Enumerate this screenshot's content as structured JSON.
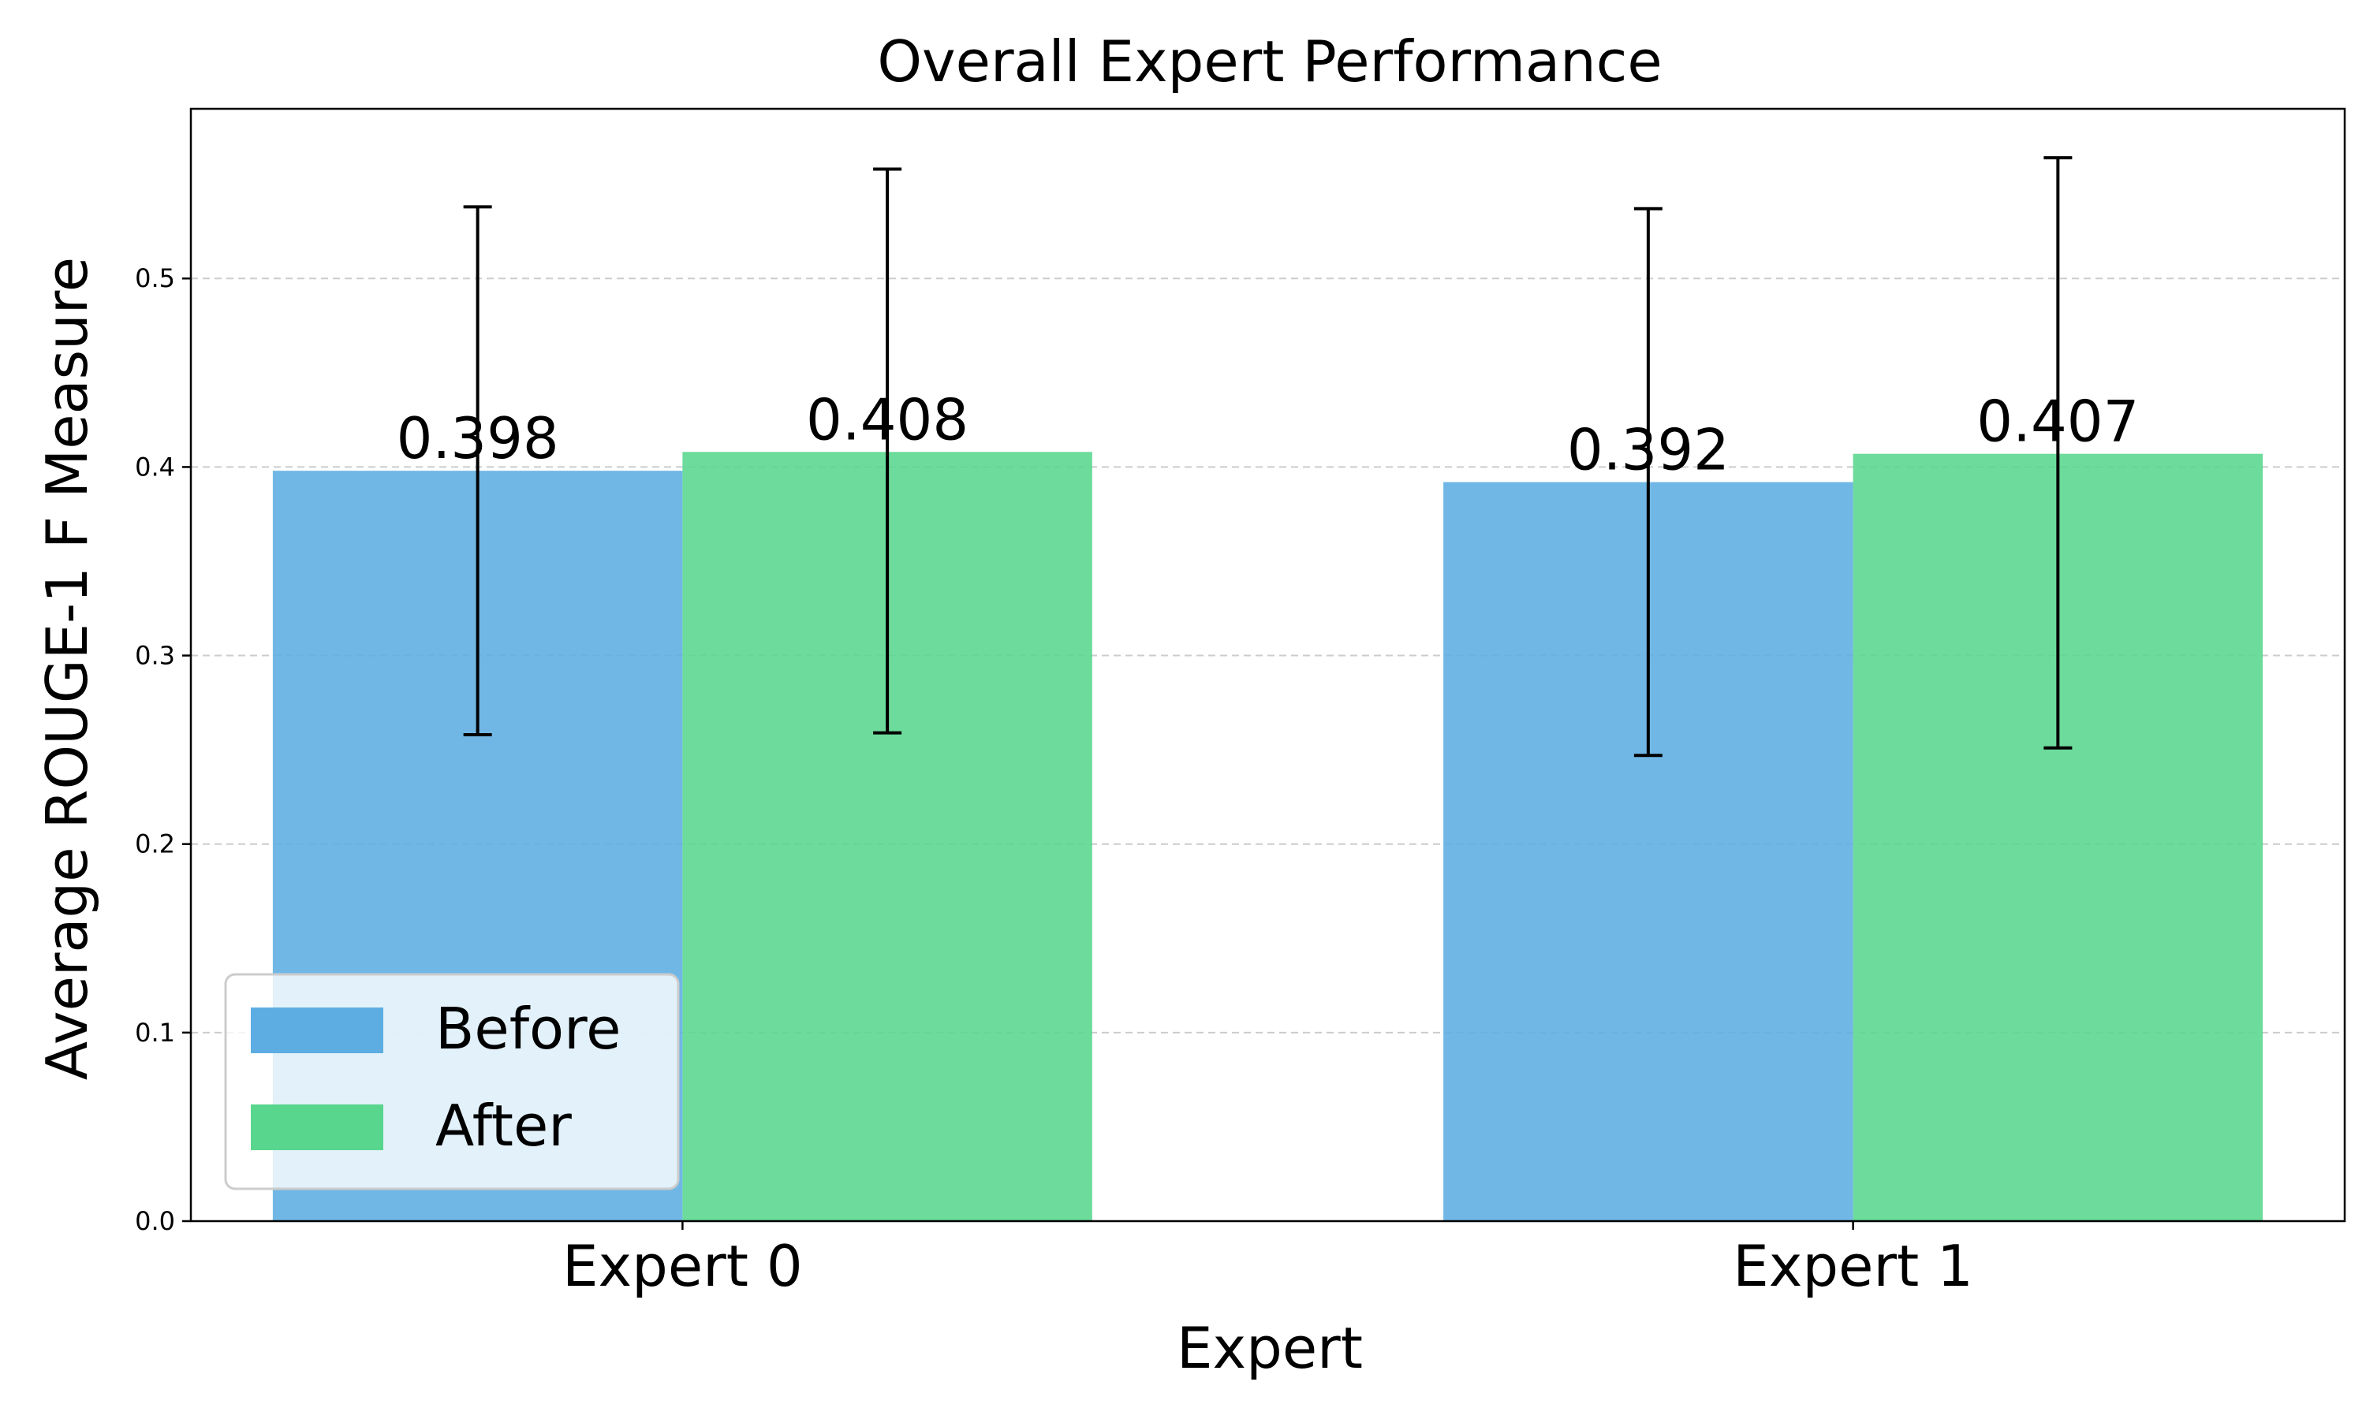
{
  "chart_data": {
    "type": "bar",
    "title": "Overall Expert Performance",
    "xlabel": "Expert",
    "ylabel": "Average ROUGE-1 F Measure",
    "categories": [
      "Expert 0",
      "Expert 1"
    ],
    "series": [
      {
        "name": "Before",
        "color": "#5dade2",
        "values": [
          0.398,
          0.392
        ],
        "error_low": [
          0.258,
          0.247
        ],
        "error_high": [
          0.538,
          0.537
        ],
        "value_labels": [
          "0.398",
          "0.392"
        ]
      },
      {
        "name": "After",
        "color": "#58d68d",
        "values": [
          0.408,
          0.407
        ],
        "error_low": [
          0.259,
          0.251
        ],
        "error_high": [
          0.558,
          0.564
        ],
        "value_labels": [
          "0.408",
          "0.407"
        ]
      }
    ],
    "ylim": [
      0,
      0.59
    ],
    "yticks": [
      0.0,
      0.1,
      0.2,
      0.3,
      0.4,
      0.5
    ],
    "ytick_labels": [
      "0.0",
      "0.1",
      "0.2",
      "0.3",
      "0.4",
      "0.5"
    ],
    "grid": "y, dashed",
    "legend_position": "lower-left"
  }
}
